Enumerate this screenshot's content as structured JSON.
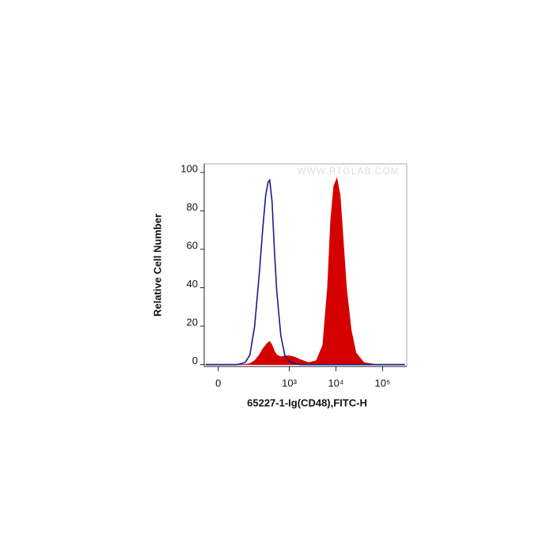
{
  "chart_data": {
    "type": "histogram-overlay",
    "xlabel": "65227-1-Ig(CD48),FITC-H",
    "ylabel": "Relative Cell Number",
    "watermark": "WWW.PTGLAB.COM",
    "xscale": "biexponential",
    "xlim": [
      -45,
      330000
    ],
    "xticks": [
      0,
      {
        "value": 1000,
        "label": "10³"
      },
      {
        "value": 10000,
        "label": "10⁴"
      },
      {
        "value": 100000,
        "label": "10⁵"
      }
    ],
    "ylim": [
      -1,
      104.5
    ],
    "yticks": [
      0,
      20,
      40,
      60,
      80,
      100
    ],
    "x": [
      -40,
      -14,
      9,
      35,
      65,
      105,
      137,
      176,
      225,
      265,
      309,
      349,
      378,
      425,
      477,
      538,
      657,
      798,
      1010,
      1270,
      1740,
      2570,
      3790,
      5220,
      6600,
      7710,
      9000,
      10500,
      12300,
      14300,
      16800,
      21200,
      26900,
      39700,
      71100,
      155000,
      302000
    ],
    "series": [
      {
        "color": "#1a1a8c",
        "fill": false,
        "values": [
          0,
          0,
          0,
          0,
          0,
          1,
          5,
          20,
          48,
          70,
          88,
          95,
          96,
          85,
          60,
          38,
          15,
          5,
          1.5,
          0.5,
          0,
          0,
          0,
          0,
          0,
          0,
          0,
          0,
          0,
          0,
          0,
          0,
          0,
          0,
          0,
          0,
          0
        ]
      },
      {
        "color": "#d40000",
        "fill": true,
        "values": [
          0,
          0,
          0,
          0,
          0,
          0,
          0.5,
          2,
          5,
          8,
          10,
          11.5,
          12,
          10,
          7,
          5,
          4,
          4.5,
          4.5,
          4,
          2.5,
          1,
          2,
          10,
          40,
          75,
          93,
          97,
          88,
          65,
          40,
          18,
          6,
          1,
          0,
          0,
          0
        ]
      }
    ]
  }
}
